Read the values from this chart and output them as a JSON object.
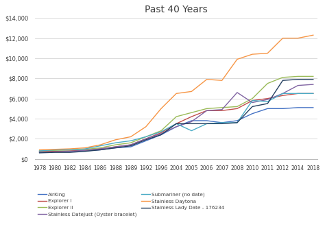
{
  "title": "Past 40 Years",
  "years": [
    1978,
    1980,
    1982,
    1984,
    1986,
    1988,
    1989,
    1992,
    1996,
    2004,
    2005,
    2006,
    2007,
    2008,
    2010,
    2011,
    2012,
    2014,
    2018
  ],
  "series": {
    "AirKing": {
      "color": "#4472C4",
      "values": [
        700,
        750,
        750,
        800,
        900,
        1100,
        1200,
        1800,
        2400,
        3200,
        3800,
        3800,
        3600,
        3800,
        4500,
        5000,
        5000,
        5100,
        5100
      ]
    },
    "Explorer I": {
      "color": "#C0504D",
      "values": [
        750,
        750,
        800,
        850,
        1000,
        1200,
        1400,
        2000,
        2600,
        3500,
        4200,
        4800,
        4800,
        5000,
        5800,
        6000,
        6300,
        6500,
        6500
      ]
    },
    "Explorer II": {
      "color": "#9BBB59",
      "values": [
        800,
        850,
        900,
        950,
        1100,
        1400,
        1600,
        2200,
        2800,
        4200,
        4600,
        5000,
        5100,
        5200,
        6000,
        7500,
        8100,
        8200,
        8200
      ]
    },
    "Stainless DateJust (Oyster bracelet)": {
      "color": "#8064A2",
      "values": [
        650,
        700,
        750,
        850,
        1000,
        1200,
        1400,
        2000,
        2500,
        3200,
        3700,
        4800,
        4900,
        6600,
        5600,
        5900,
        6500,
        7300,
        7400
      ]
    },
    "Submariner (no date)": {
      "color": "#4BACC6",
      "values": [
        800,
        900,
        900,
        1000,
        1300,
        1600,
        1800,
        2200,
        2700,
        3500,
        2800,
        3500,
        3600,
        3600,
        5800,
        5700,
        6500,
        6500,
        6500
      ]
    },
    "Stainless Daytona": {
      "color": "#F79646",
      "values": [
        900,
        950,
        1000,
        1100,
        1400,
        1900,
        2200,
        3200,
        5000,
        6500,
        6700,
        7900,
        7800,
        9900,
        10400,
        10500,
        12000,
        12000,
        12300
      ]
    },
    "Stainless Lady Date - 176234": {
      "color": "#243F60",
      "values": [
        600,
        650,
        650,
        750,
        900,
        1100,
        1300,
        1900,
        2400,
        3500,
        3500,
        3500,
        3500,
        3600,
        5200,
        5500,
        7800,
        7900,
        7900
      ]
    }
  },
  "ylim": [
    0,
    14000
  ],
  "yticks": [
    0,
    2000,
    4000,
    6000,
    8000,
    10000,
    12000,
    14000
  ],
  "background_color": "#FFFFFF",
  "grid_color": "#D3D3D3",
  "legend_order": [
    "AirKing",
    "Explorer I",
    "Explorer II",
    "Stainless DateJust (Oyster bracelet)",
    "Submariner (no date)",
    "Stainless Daytona",
    "Stainless Lady Date - 176234"
  ]
}
